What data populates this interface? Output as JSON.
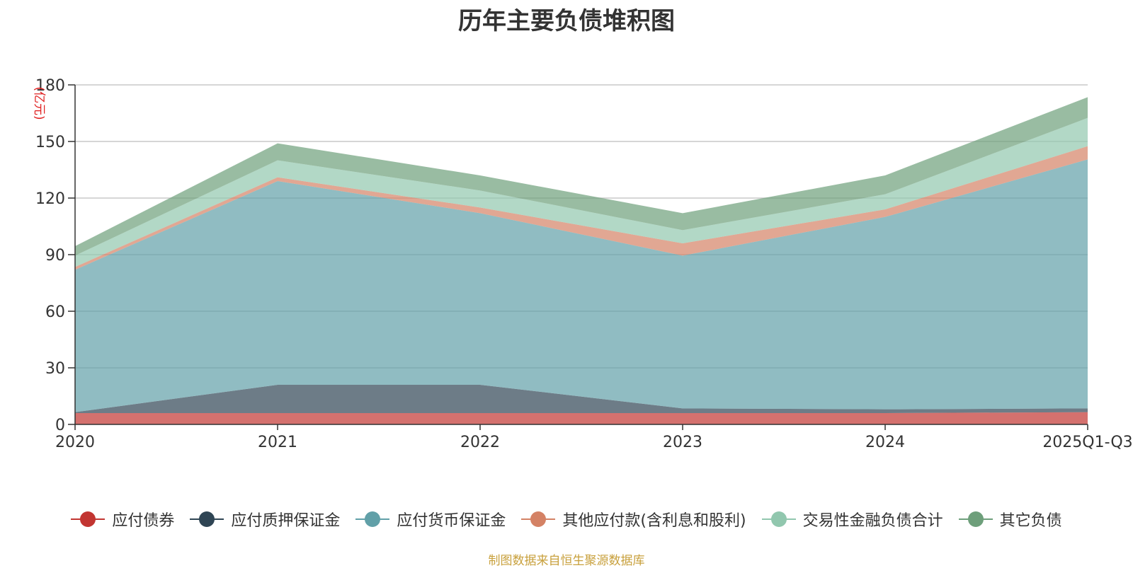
{
  "chart_data": {
    "type": "area",
    "stacked": true,
    "title": "历年主要负债堆积图",
    "unit_label": "(亿元)",
    "categories": [
      "2020",
      "2021",
      "2022",
      "2023",
      "2024",
      "2025Q1-Q3"
    ],
    "ylim": [
      0,
      180
    ],
    "yticks": [
      0,
      30,
      60,
      90,
      120,
      150,
      180
    ],
    "grid": true,
    "legend_position": "bottom",
    "series": [
      {
        "name": "应付债券",
        "color": "#c23531",
        "values": [
          6,
          6,
          6,
          6,
          6,
          6.5
        ]
      },
      {
        "name": "应付质押保证金",
        "color": "#2f4554",
        "values": [
          0.5,
          15,
          15,
          2.5,
          2,
          2
        ]
      },
      {
        "name": "应付货币保证金",
        "color": "#61a0a8",
        "values": [
          75.5,
          108,
          91,
          81,
          102,
          132
        ]
      },
      {
        "name": "其他应付款(含利息和股利)",
        "color": "#d48265",
        "values": [
          1.5,
          2,
          3,
          6.5,
          4,
          7
        ]
      },
      {
        "name": "交易性金融负债合计",
        "color": "#91c7ae",
        "values": [
          6,
          9,
          9,
          7,
          8,
          15
        ]
      },
      {
        "name": "其它负债",
        "color": "#6e9f7b",
        "values": [
          5,
          9,
          8,
          9,
          10,
          11
        ]
      }
    ]
  },
  "source_note": "制图数据来自恒生聚源数据库"
}
